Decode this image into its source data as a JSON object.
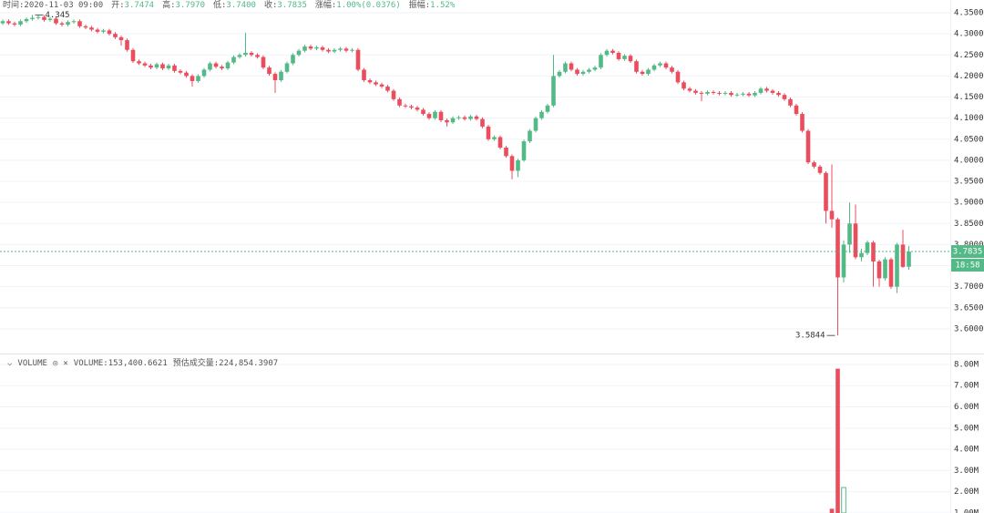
{
  "ohlc_header": [
    {
      "label": "时间:",
      "value": "2020-11-03 09:00"
    },
    {
      "label": "开:",
      "value": "3.7474"
    },
    {
      "label": "高:",
      "value": "3.7970"
    },
    {
      "label": "低:",
      "value": "3.7400"
    },
    {
      "label": "收:",
      "value": "3.7835"
    },
    {
      "label": "涨幅:",
      "value": "1.00%(0.0376)"
    },
    {
      "label": "振幅:",
      "value": "1.52%"
    }
  ],
  "chart_data": [
    {
      "type": "candlestick",
      "up_color": "#53b987",
      "down_color": "#eb4d5c",
      "grid": true,
      "countdown": "18:58",
      "ylim": [
        3.5415,
        4.3803
      ],
      "yticks": [
        {
          "value": 4.35,
          "label": "4.3500"
        },
        {
          "value": 4.3,
          "label": "4.3000"
        },
        {
          "value": 4.25,
          "label": "4.2500"
        },
        {
          "value": 4.2,
          "label": "4.2000"
        },
        {
          "value": 4.15,
          "label": "4.1500"
        },
        {
          "value": 4.1,
          "label": "4.1000"
        },
        {
          "value": 4.05,
          "label": "4.0500"
        },
        {
          "value": 4.0,
          "label": "4.0000"
        },
        {
          "value": 3.95,
          "label": "3.9500"
        },
        {
          "value": 3.9,
          "label": "3.9000"
        },
        {
          "value": 3.85,
          "label": "3.8500"
        },
        {
          "value": 3.8,
          "label": "3.8000"
        },
        {
          "value": 3.75,
          "label": "3.7500"
        },
        {
          "value": 3.7,
          "label": "3.7000"
        },
        {
          "value": 3.65,
          "label": "3.6500"
        },
        {
          "value": 3.6,
          "label": "3.6000"
        }
      ],
      "candles": [
        [
          4.325,
          4.334,
          4.321,
          4.33
        ],
        [
          4.33,
          4.334,
          4.321,
          4.325
        ],
        [
          4.325,
          4.329,
          4.318,
          4.322
        ],
        [
          4.322,
          4.334,
          4.318,
          4.33
        ],
        [
          4.33,
          4.339,
          4.326,
          4.335
        ],
        [
          4.335,
          4.345,
          4.331,
          4.338
        ],
        [
          4.338,
          4.344,
          4.334,
          4.34
        ],
        [
          4.34,
          4.344,
          4.329,
          4.333
        ],
        [
          4.333,
          4.34,
          4.329,
          4.336
        ],
        [
          4.336,
          4.34,
          4.321,
          4.325
        ],
        [
          4.325,
          4.329,
          4.318,
          4.322
        ],
        [
          4.322,
          4.332,
          4.318,
          4.328
        ],
        [
          4.328,
          4.334,
          4.324,
          4.33
        ],
        [
          4.33,
          4.334,
          4.314,
          4.318
        ],
        [
          4.318,
          4.322,
          4.311,
          4.315
        ],
        [
          4.315,
          4.319,
          4.306,
          4.31
        ],
        [
          4.31,
          4.314,
          4.301,
          4.305
        ],
        [
          4.305,
          4.312,
          4.301,
          4.308
        ],
        [
          4.308,
          4.312,
          4.296,
          4.3
        ],
        [
          4.3,
          4.304,
          4.288,
          4.292
        ],
        [
          4.292,
          4.296,
          4.272,
          4.285
        ],
        [
          4.285,
          4.289,
          4.258,
          4.262
        ],
        [
          4.262,
          4.266,
          4.231,
          4.235
        ],
        [
          4.235,
          4.239,
          4.226,
          4.23
        ],
        [
          4.23,
          4.234,
          4.221,
          4.225
        ],
        [
          4.225,
          4.229,
          4.216,
          4.22
        ],
        [
          4.22,
          4.232,
          4.216,
          4.228
        ],
        [
          4.228,
          4.232,
          4.214,
          4.218
        ],
        [
          4.218,
          4.229,
          4.214,
          4.225
        ],
        [
          4.225,
          4.229,
          4.208,
          4.212
        ],
        [
          4.212,
          4.216,
          4.204,
          4.208
        ],
        [
          4.208,
          4.212,
          4.196,
          4.2
        ],
        [
          4.2,
          4.204,
          4.175,
          4.188
        ],
        [
          4.188,
          4.204,
          4.184,
          4.2
        ],
        [
          4.2,
          4.219,
          4.196,
          4.215
        ],
        [
          4.215,
          4.234,
          4.211,
          4.23
        ],
        [
          4.23,
          4.234,
          4.218,
          4.222
        ],
        [
          4.222,
          4.226,
          4.214,
          4.218
        ],
        [
          4.218,
          4.236,
          4.214,
          4.232
        ],
        [
          4.232,
          4.249,
          4.228,
          4.245
        ],
        [
          4.245,
          4.254,
          4.241,
          4.25
        ],
        [
          4.25,
          4.303,
          4.246,
          4.255
        ],
        [
          4.255,
          4.259,
          4.246,
          4.25
        ],
        [
          4.25,
          4.254,
          4.241,
          4.245
        ],
        [
          4.245,
          4.249,
          4.216,
          4.22
        ],
        [
          4.22,
          4.224,
          4.201,
          4.205
        ],
        [
          4.205,
          4.209,
          4.16,
          4.19
        ],
        [
          4.19,
          4.214,
          4.186,
          4.21
        ],
        [
          4.21,
          4.234,
          4.206,
          4.23
        ],
        [
          4.23,
          4.254,
          4.226,
          4.25
        ],
        [
          4.25,
          4.264,
          4.246,
          4.26
        ],
        [
          4.26,
          4.274,
          4.256,
          4.27
        ],
        [
          4.27,
          4.274,
          4.261,
          4.265
        ],
        [
          4.265,
          4.272,
          4.261,
          4.268
        ],
        [
          4.268,
          4.272,
          4.258,
          4.262
        ],
        [
          4.262,
          4.266,
          4.254,
          4.258
        ],
        [
          4.258,
          4.266,
          4.254,
          4.262
        ],
        [
          4.262,
          4.269,
          4.258,
          4.265
        ],
        [
          4.265,
          4.269,
          4.256,
          4.26
        ],
        [
          4.26,
          4.266,
          4.256,
          4.262
        ],
        [
          4.262,
          4.266,
          4.211,
          4.215
        ],
        [
          4.215,
          4.219,
          4.186,
          4.19
        ],
        [
          4.19,
          4.194,
          4.181,
          4.185
        ],
        [
          4.185,
          4.189,
          4.176,
          4.18
        ],
        [
          4.18,
          4.184,
          4.171,
          4.175
        ],
        [
          4.175,
          4.179,
          4.161,
          4.165
        ],
        [
          4.165,
          4.169,
          4.141,
          4.145
        ],
        [
          4.145,
          4.149,
          4.126,
          4.13
        ],
        [
          4.13,
          4.134,
          4.124,
          4.128
        ],
        [
          4.128,
          4.132,
          4.121,
          4.125
        ],
        [
          4.125,
          4.129,
          4.116,
          4.12
        ],
        [
          4.12,
          4.124,
          4.106,
          4.11
        ],
        [
          4.11,
          4.114,
          4.096,
          4.1
        ],
        [
          4.1,
          4.119,
          4.096,
          4.115
        ],
        [
          4.115,
          4.119,
          4.091,
          4.095
        ],
        [
          4.095,
          4.099,
          4.08,
          4.09
        ],
        [
          4.09,
          4.104,
          4.086,
          4.1
        ],
        [
          4.1,
          4.106,
          4.096,
          4.102
        ],
        [
          4.102,
          4.106,
          4.094,
          4.098
        ],
        [
          4.098,
          4.108,
          4.094,
          4.104
        ],
        [
          4.104,
          4.108,
          4.094,
          4.098
        ],
        [
          4.098,
          4.102,
          4.076,
          4.08
        ],
        [
          4.08,
          4.084,
          4.046,
          4.05
        ],
        [
          4.05,
          4.059,
          4.046,
          4.055
        ],
        [
          4.055,
          4.059,
          4.026,
          4.03
        ],
        [
          4.03,
          4.034,
          4.006,
          4.01
        ],
        [
          4.01,
          4.014,
          3.955,
          3.975
        ],
        [
          3.975,
          4.004,
          3.96,
          4.0
        ],
        [
          4.0,
          4.049,
          3.996,
          4.045
        ],
        [
          4.045,
          4.074,
          4.041,
          4.07
        ],
        [
          4.07,
          4.104,
          4.066,
          4.1
        ],
        [
          4.1,
          4.119,
          4.096,
          4.115
        ],
        [
          4.115,
          4.134,
          4.111,
          4.13
        ],
        [
          4.13,
          4.25,
          4.126,
          4.2
        ],
        [
          4.2,
          4.214,
          4.196,
          4.21
        ],
        [
          4.21,
          4.234,
          4.206,
          4.23
        ],
        [
          4.23,
          4.234,
          4.211,
          4.215
        ],
        [
          4.215,
          4.219,
          4.201,
          4.205
        ],
        [
          4.205,
          4.214,
          4.201,
          4.21
        ],
        [
          4.21,
          4.219,
          4.206,
          4.215
        ],
        [
          4.215,
          4.224,
          4.211,
          4.22
        ],
        [
          4.22,
          4.254,
          4.216,
          4.25
        ],
        [
          4.25,
          4.264,
          4.246,
          4.26
        ],
        [
          4.26,
          4.264,
          4.251,
          4.255
        ],
        [
          4.255,
          4.259,
          4.236,
          4.24
        ],
        [
          4.24,
          4.252,
          4.236,
          4.248
        ],
        [
          4.248,
          4.252,
          4.231,
          4.235
        ],
        [
          4.235,
          4.239,
          4.206,
          4.21
        ],
        [
          4.21,
          4.214,
          4.201,
          4.205
        ],
        [
          4.205,
          4.219,
          4.201,
          4.215
        ],
        [
          4.215,
          4.229,
          4.211,
          4.225
        ],
        [
          4.225,
          4.234,
          4.221,
          4.23
        ],
        [
          4.23,
          4.234,
          4.216,
          4.22
        ],
        [
          4.22,
          4.224,
          4.206,
          4.21
        ],
        [
          4.21,
          4.214,
          4.181,
          4.185
        ],
        [
          4.185,
          4.189,
          4.166,
          4.17
        ],
        [
          4.17,
          4.174,
          4.161,
          4.165
        ],
        [
          4.165,
          4.169,
          4.156,
          4.16
        ],
        [
          4.16,
          4.164,
          4.14,
          4.158
        ],
        [
          4.158,
          4.166,
          4.154,
          4.162
        ],
        [
          4.162,
          4.166,
          4.156,
          4.16
        ],
        [
          4.16,
          4.164,
          4.154,
          4.158
        ],
        [
          4.158,
          4.164,
          4.154,
          4.16
        ],
        [
          4.16,
          4.164,
          4.151,
          4.155
        ],
        [
          4.155,
          4.16,
          4.151,
          4.156
        ],
        [
          4.156,
          4.162,
          4.152,
          4.158
        ],
        [
          4.158,
          4.162,
          4.15,
          4.154
        ],
        [
          4.154,
          4.164,
          4.15,
          4.16
        ],
        [
          4.16,
          4.174,
          4.156,
          4.17
        ],
        [
          4.17,
          4.174,
          4.161,
          4.165
        ],
        [
          4.165,
          4.169,
          4.156,
          4.16
        ],
        [
          4.16,
          4.164,
          4.151,
          4.155
        ],
        [
          4.155,
          4.159,
          4.141,
          4.145
        ],
        [
          4.145,
          4.149,
          4.126,
          4.13
        ],
        [
          4.13,
          4.134,
          4.106,
          4.11
        ],
        [
          4.11,
          4.114,
          4.066,
          4.07
        ],
        [
          4.07,
          4.074,
          3.991,
          3.995
        ],
        [
          3.995,
          3.999,
          3.981,
          3.985
        ],
        [
          3.985,
          3.989,
          3.966,
          3.97
        ],
        [
          3.97,
          3.974,
          3.85,
          3.88
        ],
        [
          3.88,
          3.99,
          3.84,
          3.86
        ],
        [
          3.86,
          3.864,
          3.5844,
          3.722
        ],
        [
          3.722,
          3.81,
          3.71,
          3.8
        ],
        [
          3.8,
          3.9,
          3.78,
          3.85
        ],
        [
          3.85,
          3.895,
          3.765,
          3.77
        ],
        [
          3.77,
          3.79,
          3.76,
          3.78
        ],
        [
          3.78,
          3.81,
          3.775,
          3.805
        ],
        [
          3.805,
          3.809,
          3.7,
          3.76
        ],
        [
          3.76,
          3.764,
          3.7,
          3.72
        ],
        [
          3.72,
          3.77,
          3.715,
          3.765
        ],
        [
          3.765,
          3.769,
          3.695,
          3.7
        ],
        [
          3.7,
          3.804,
          3.685,
          3.8
        ],
        [
          3.8,
          3.835,
          3.745,
          3.747
        ],
        [
          3.7474,
          3.797,
          3.74,
          3.7835
        ]
      ]
    },
    {
      "type": "volume",
      "title": "VOLUME",
      "legend_value": "VOLUME:153,400.6621",
      "legend_estimate": "预估成交量:224,854.3907",
      "grid": true,
      "ylim": [
        1000000,
        8470000
      ],
      "yticks": [
        {
          "value": 8000000,
          "label": "8.00M"
        },
        {
          "value": 7000000,
          "label": "7.00M"
        },
        {
          "value": 6000000,
          "label": "6.00M"
        },
        {
          "value": 5000000,
          "label": "5.00M"
        },
        {
          "value": 4000000,
          "label": "4.00M"
        },
        {
          "value": 3000000,
          "label": "3.00M"
        },
        {
          "value": 2000000,
          "label": "2.00M"
        },
        {
          "value": 1000000,
          "label": "1.00M"
        }
      ],
      "values": [
        null,
        null,
        null,
        null,
        null,
        null,
        null,
        null,
        null,
        null,
        null,
        null,
        null,
        null,
        null,
        null,
        null,
        null,
        null,
        null,
        null,
        null,
        null,
        null,
        null,
        null,
        null,
        null,
        null,
        null,
        null,
        null,
        null,
        null,
        null,
        null,
        null,
        null,
        null,
        null,
        null,
        null,
        null,
        null,
        null,
        null,
        null,
        null,
        null,
        null,
        null,
        null,
        null,
        null,
        null,
        null,
        null,
        null,
        null,
        null,
        null,
        null,
        null,
        null,
        null,
        null,
        null,
        null,
        null,
        null,
        null,
        null,
        null,
        null,
        null,
        null,
        null,
        null,
        null,
        null,
        null,
        null,
        null,
        null,
        null,
        null,
        null,
        null,
        null,
        null,
        null,
        null,
        null,
        null,
        null,
        null,
        null,
        null,
        null,
        null,
        null,
        null,
        null,
        null,
        null,
        null,
        null,
        null,
        null,
        null,
        null,
        null,
        null,
        null,
        null,
        null,
        null,
        null,
        null,
        null,
        null,
        null,
        null,
        null,
        null,
        null,
        null,
        null,
        null,
        null,
        null,
        null,
        null,
        null,
        null,
        null,
        null,
        null,
        null,
        null,
        1200000,
        7800000,
        2200000,
        null,
        null,
        null,
        null,
        null,
        null,
        null,
        null,
        null,
        null,
        null
      ]
    }
  ]
}
